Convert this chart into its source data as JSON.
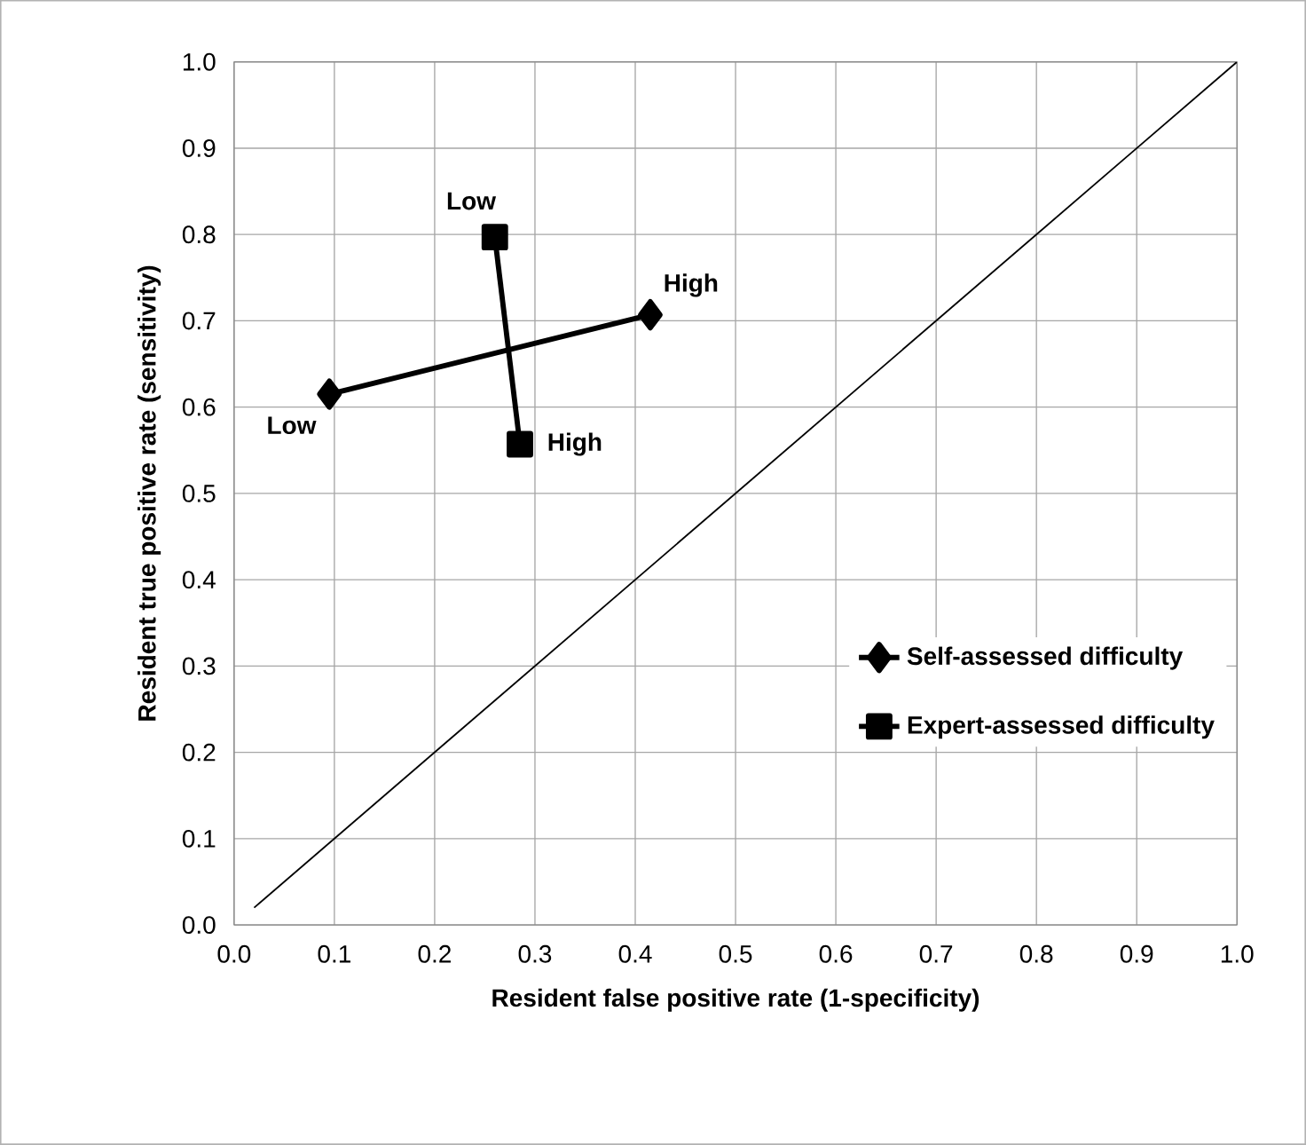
{
  "chart_data": {
    "type": "line",
    "xlabel": "Resident false positive rate (1-specificity)",
    "ylabel": "Resident true positive rate (sensitivity)",
    "series": [
      {
        "name": "Self-assessed difficulty",
        "color": "#000000",
        "marker": "diamond",
        "x": [
          0.095,
          0.415
        ],
        "values": [
          0.615,
          0.707
        ]
      },
      {
        "name": "Expert-assessed difficulty",
        "color": "#000000",
        "marker": "square",
        "x": [
          0.26,
          0.285
        ],
        "values": [
          0.797,
          0.557
        ]
      },
      {
        "color": "#000000",
        "marker": "none",
        "x": [
          0.02,
          1.0
        ],
        "values": [
          0.02,
          1.0
        ]
      }
    ],
    "annotations": [
      {
        "text": "Low",
        "x": 0.095,
        "y": 0.615
      },
      {
        "text": "High",
        "x": 0.415,
        "y": 0.707
      },
      {
        "text": "Low",
        "x": 0.26,
        "y": 0.797
      },
      {
        "text": "High",
        "x": 0.285,
        "y": 0.557
      }
    ],
    "xlim": [
      0,
      1
    ],
    "ylim": [
      0,
      1
    ],
    "xticks": [
      {
        "value": 0,
        "label": "0.0"
      },
      {
        "value": 0.1,
        "label": "0.1"
      },
      {
        "value": 0.2,
        "label": "0.2"
      },
      {
        "value": 0.3,
        "label": "0.3"
      },
      {
        "value": 0.4,
        "label": "0.4"
      },
      {
        "value": 0.5,
        "label": "0.5"
      },
      {
        "value": 0.6,
        "label": "0.6"
      },
      {
        "value": 0.7,
        "label": "0.7"
      },
      {
        "value": 0.8,
        "label": "0.8"
      },
      {
        "value": 0.9,
        "label": "0.9"
      },
      {
        "value": 1,
        "label": "1.0"
      }
    ],
    "yticks": [
      {
        "value": 0,
        "label": "0.0"
      },
      {
        "value": 0.1,
        "label": "0.1"
      },
      {
        "value": 0.2,
        "label": "0.2"
      },
      {
        "value": 0.3,
        "label": "0.3"
      },
      {
        "value": 0.4,
        "label": "0.4"
      },
      {
        "value": 0.5,
        "label": "0.5"
      },
      {
        "value": 0.6,
        "label": "0.6"
      },
      {
        "value": 0.7,
        "label": "0.7"
      },
      {
        "value": 0.8,
        "label": "0.8"
      },
      {
        "value": 0.9,
        "label": "0.9"
      },
      {
        "value": 1,
        "label": "1.0"
      }
    ],
    "grid": true,
    "legend": "right"
  }
}
